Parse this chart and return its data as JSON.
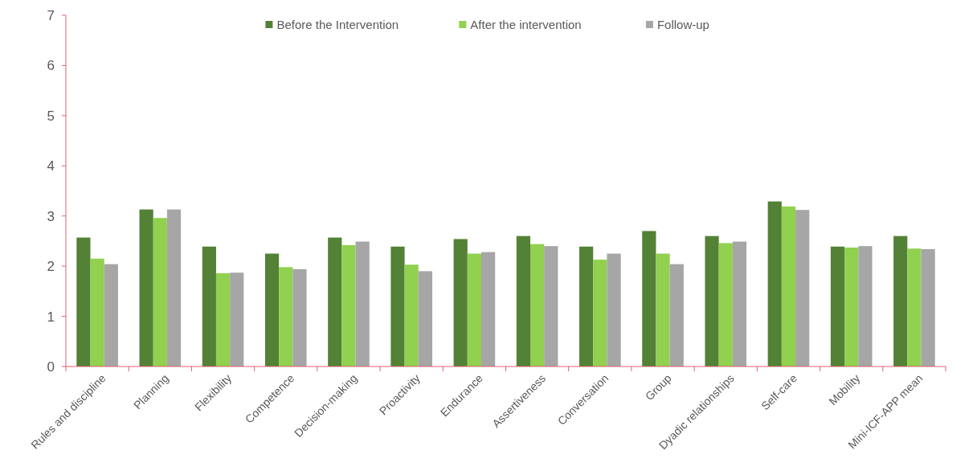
{
  "chart_data": {
    "type": "bar",
    "categories": [
      "Rules and discipline",
      "Planning",
      "Flexibility",
      "Competence",
      "Decision-making",
      "Proactivity",
      "Endurance",
      "Assertiveness",
      "Conversation",
      "Group",
      "Dyadic relationships",
      "Self-care",
      "Mobility",
      "Mini-ICF-APP mean"
    ],
    "series": [
      {
        "name": "Before the Intervention",
        "color": "#538135",
        "values": [
          2.57,
          3.13,
          2.39,
          2.25,
          2.57,
          2.39,
          2.54,
          2.6,
          2.39,
          2.7,
          2.6,
          3.29,
          2.39,
          2.6
        ]
      },
      {
        "name": "After the intervention",
        "color": "#92d050",
        "values": [
          2.15,
          2.96,
          1.86,
          1.98,
          2.42,
          2.03,
          2.25,
          2.44,
          2.13,
          2.25,
          2.46,
          3.19,
          2.37,
          2.35
        ]
      },
      {
        "name": "Follow-up",
        "color": "#a6a6a6",
        "values": [
          2.04,
          3.13,
          1.87,
          1.94,
          2.49,
          1.9,
          2.28,
          2.4,
          2.25,
          2.04,
          2.49,
          3.12,
          2.4,
          2.34
        ]
      }
    ],
    "ylim": [
      0,
      7
    ],
    "yticks": [
      0,
      1,
      2,
      3,
      4,
      5,
      6,
      7
    ],
    "grid": false,
    "legend": "top"
  }
}
